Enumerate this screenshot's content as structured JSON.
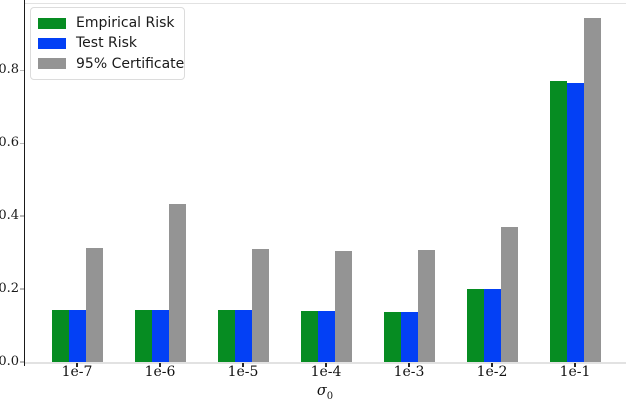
{
  "chart_data": {
    "type": "bar",
    "title": "",
    "xlabel": "σ_0",
    "xlabel_char": "σ",
    "xlabel_subscript": "0",
    "ylabel": "",
    "categories": [
      "1e-7",
      "1e-6",
      "1e-5",
      "1e-4",
      "1e-3",
      "1e-2",
      "1e-1"
    ],
    "series": [
      {
        "name": "Empirical Risk",
        "color": "#068C22",
        "values": [
          0.142,
          0.142,
          0.142,
          0.141,
          0.138,
          0.201,
          0.771
        ]
      },
      {
        "name": "Test Risk",
        "color": "#0340F5",
        "values": [
          0.142,
          0.142,
          0.142,
          0.141,
          0.138,
          0.2,
          0.766
        ]
      },
      {
        "name": "95% Certificate",
        "color": "#949494",
        "values": [
          0.313,
          0.434,
          0.309,
          0.305,
          0.306,
          0.37,
          0.944
        ]
      }
    ],
    "ylim": [
      0,
      0.985
    ],
    "yticks": [
      0.0,
      0.2,
      0.4,
      0.6,
      0.8
    ],
    "ytick_labels": [
      "0.0",
      "0.2",
      "0.4",
      "0.6",
      "0.8"
    ],
    "legend_position": "upper-left",
    "grid": false,
    "bar_group_layout": "grouped-touching"
  },
  "colors": {
    "background": "#ffffff",
    "left_spine": "#1a1a1a",
    "light_spine": "#e2e2e2",
    "tick_label": "#1a1a1a"
  }
}
